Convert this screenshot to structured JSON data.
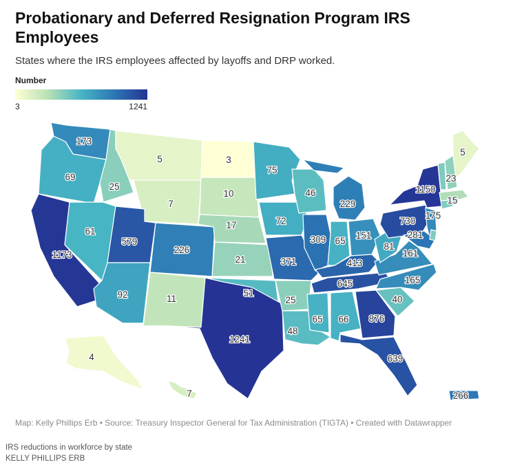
{
  "header": {
    "title": "Probationary and Deferred Resignation Program IRS Employees",
    "subtitle": "States where the IRS employees affected by layoffs and DRP worked."
  },
  "legend": {
    "title": "Number",
    "min_label": "3",
    "max_label": "1241",
    "colors": [
      "#feffd4",
      "#b8e0b6",
      "#47b5c4",
      "#2c77b5",
      "#253494"
    ]
  },
  "map_data": {
    "type": "choropleth",
    "region": "United States",
    "scale": {
      "min": 3,
      "max": 1241
    },
    "states": [
      {
        "abbr": "WA",
        "value": 173
      },
      {
        "abbr": "OR",
        "value": 69
      },
      {
        "abbr": "CA",
        "value": 1173
      },
      {
        "abbr": "ID",
        "value": 25
      },
      {
        "abbr": "NV",
        "value": 61
      },
      {
        "abbr": "MT",
        "value": 5
      },
      {
        "abbr": "WY",
        "value": 7
      },
      {
        "abbr": "UT",
        "value": 579
      },
      {
        "abbr": "AZ",
        "value": 92
      },
      {
        "abbr": "CO",
        "value": 226
      },
      {
        "abbr": "NM",
        "value": 11
      },
      {
        "abbr": "ND",
        "value": 3
      },
      {
        "abbr": "SD",
        "value": 10
      },
      {
        "abbr": "NE",
        "value": 17
      },
      {
        "abbr": "KS",
        "value": 21
      },
      {
        "abbr": "OK",
        "value": 51
      },
      {
        "abbr": "TX",
        "value": 1241
      },
      {
        "abbr": "MN",
        "value": 75
      },
      {
        "abbr": "IA",
        "value": 72
      },
      {
        "abbr": "MO",
        "value": 371
      },
      {
        "abbr": "AR",
        "value": 25
      },
      {
        "abbr": "LA",
        "value": 48
      },
      {
        "abbr": "WI",
        "value": 46
      },
      {
        "abbr": "IL",
        "value": 309
      },
      {
        "abbr": "MI",
        "value": 229
      },
      {
        "abbr": "IN",
        "value": 65
      },
      {
        "abbr": "OH",
        "value": 151
      },
      {
        "abbr": "KY",
        "value": 413
      },
      {
        "abbr": "TN",
        "value": 645
      },
      {
        "abbr": "MS",
        "value": 65
      },
      {
        "abbr": "AL",
        "value": 66
      },
      {
        "abbr": "GA",
        "value": 876
      },
      {
        "abbr": "FL",
        "value": 639
      },
      {
        "abbr": "SC",
        "value": 40
      },
      {
        "abbr": "NC",
        "value": 165
      },
      {
        "abbr": "VA",
        "value": 161
      },
      {
        "abbr": "WV",
        "value": 81
      },
      {
        "abbr": "PA",
        "value": 730
      },
      {
        "abbr": "NY",
        "value": 1150
      },
      {
        "abbr": "NJ",
        "value": 175
      },
      {
        "abbr": "MD",
        "value": 281
      },
      {
        "abbr": "DE",
        "value": null
      },
      {
        "abbr": "CT",
        "value": null
      },
      {
        "abbr": "RI",
        "value": null
      },
      {
        "abbr": "MA",
        "value": 15
      },
      {
        "abbr": "VT",
        "value": null
      },
      {
        "abbr": "NH",
        "value": 23
      },
      {
        "abbr": "ME",
        "value": 5
      },
      {
        "abbr": "AK",
        "value": 4
      },
      {
        "abbr": "HI",
        "value": 7
      },
      {
        "abbr": "PR",
        "value": 266
      }
    ]
  },
  "footer": {
    "source": "Map: Kelly Phillips Erb • Source: Treasury Inspector General for Tax Administration (TIGTA) • Created with Datawrapper",
    "caption": "IRS reductions in workforce by state",
    "credit": "KELLY PHILLIPS ERB"
  }
}
